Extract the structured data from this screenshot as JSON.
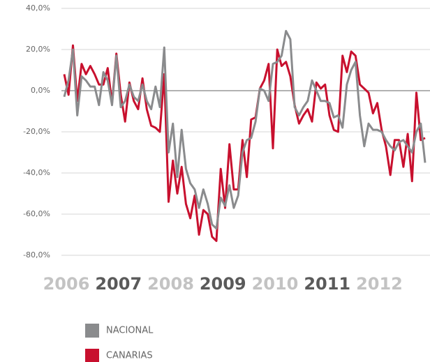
{
  "chart_data": {
    "type": "line",
    "categories": [
      "2006",
      null,
      null,
      null,
      null,
      null,
      null,
      null,
      null,
      null,
      null,
      null,
      "2007",
      null,
      null,
      null,
      null,
      null,
      null,
      null,
      null,
      null,
      null,
      null,
      "2008",
      null,
      null,
      null,
      null,
      null,
      null,
      null,
      null,
      null,
      null,
      null,
      "2009",
      null,
      null,
      null,
      null,
      null,
      null,
      null,
      null,
      null,
      null,
      null,
      "2010",
      null,
      null,
      null,
      null,
      null,
      null,
      null,
      null,
      null,
      null,
      null,
      "2011",
      null,
      null,
      null,
      null,
      null,
      null,
      null,
      null,
      null,
      null,
      null,
      "2012",
      null,
      null,
      null,
      null,
      null,
      null,
      null,
      null,
      null,
      null,
      null
    ],
    "category_colors": [
      "#c3c3c3",
      "#5a5a5a"
    ],
    "series": [
      {
        "name": "NACIONAL",
        "color": "#8a8b8d",
        "values": [
          -3,
          5,
          20,
          -12,
          7,
          5,
          2,
          2,
          -7,
          9,
          5,
          -7,
          17,
          -8,
          -5,
          3,
          -3,
          -5,
          3,
          -5,
          -9,
          2,
          -8,
          21,
          -30,
          -16,
          -42,
          -19,
          -38,
          -45,
          -48,
          -57,
          -48,
          -55,
          -65,
          -67,
          -52,
          -56,
          -46,
          -57,
          -51,
          -30,
          -24,
          -23,
          -15,
          1,
          0,
          -5,
          13,
          14,
          17,
          29,
          25,
          -8,
          -12,
          -8,
          -5,
          5,
          0,
          -5,
          -5,
          -6,
          -13,
          -12,
          -18,
          3,
          10,
          14,
          -12,
          -27,
          -16,
          -19,
          -19,
          -20,
          -24,
          -27,
          -29,
          -25,
          -24,
          -27,
          -30,
          -20,
          -16,
          -35
        ]
      },
      {
        "name": "CANARIAS",
        "color": "#c8102e",
        "values": [
          8,
          -2,
          22,
          -5,
          13,
          8,
          12,
          8,
          3,
          3,
          11,
          -6,
          18,
          -2,
          -15,
          4,
          -5,
          -9,
          6,
          -9,
          -17,
          -18,
          -20,
          8,
          -54,
          -34,
          -50,
          -37,
          -55,
          -62,
          -51,
          -70,
          -58,
          -60,
          -71,
          -73,
          -38,
          -57,
          -26,
          -48,
          -48,
          -24,
          -42,
          -14,
          -13,
          1,
          5,
          13,
          -28,
          20,
          12,
          14,
          7,
          -7,
          -16,
          -12,
          -9,
          -15,
          4,
          1,
          3,
          -12,
          -19,
          -20,
          17,
          9,
          19,
          17,
          3,
          1,
          -1,
          -11,
          -6,
          -19,
          -27,
          -41,
          -24,
          -24,
          -37,
          -21,
          -44,
          -1,
          -24,
          -23
        ]
      }
    ],
    "ylim": [
      -80,
      40
    ],
    "yticks": [
      {
        "value": 40,
        "label": "40,0%"
      },
      {
        "value": 20,
        "label": "20,0%"
      },
      {
        "value": 0,
        "label": "0,0%"
      },
      {
        "value": -20,
        "label": "-20,0%"
      },
      {
        "value": -40,
        "label": "-40,0%"
      },
      {
        "value": -60,
        "label": "-60,0%"
      },
      {
        "value": -80,
        "label": "-80,0%"
      }
    ],
    "grid": true
  }
}
